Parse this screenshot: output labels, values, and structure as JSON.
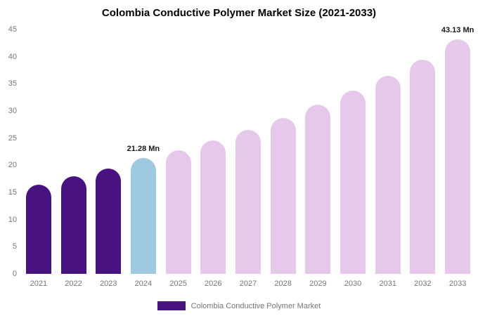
{
  "chart_data": {
    "type": "bar",
    "title": "Colombia Conductive Polymer Market Size (2021-2033)",
    "categories": [
      "2021",
      "2022",
      "2023",
      "2024",
      "2025",
      "2026",
      "2027",
      "2028",
      "2029",
      "2030",
      "2031",
      "2032",
      "2033"
    ],
    "values": [
      16.4,
      18.0,
      19.4,
      21.28,
      22.8,
      24.6,
      26.5,
      28.7,
      31.2,
      33.7,
      36.5,
      39.5,
      43.13
    ],
    "unit": "Mn",
    "xlabel": "",
    "ylabel": "",
    "ylim": [
      0,
      45
    ],
    "ytick_step": 5,
    "grid": false,
    "legend_position": "bottom",
    "point_styles": [
      "historical",
      "historical",
      "historical",
      "current",
      "forecast",
      "forecast",
      "forecast",
      "forecast",
      "forecast",
      "forecast",
      "forecast",
      "forecast",
      "forecast"
    ],
    "style_colors": {
      "historical": "#481380",
      "current": "#9fc8e1",
      "forecast": "#e6c8ea"
    },
    "annotations": [
      {
        "index": 3,
        "text": "21.28 Mn"
      },
      {
        "index": 12,
        "text": "43.13 Mn"
      }
    ]
  },
  "legend": {
    "items": [
      {
        "label": "Colombia Conductive Polymer Market",
        "color": "#481380"
      }
    ]
  }
}
